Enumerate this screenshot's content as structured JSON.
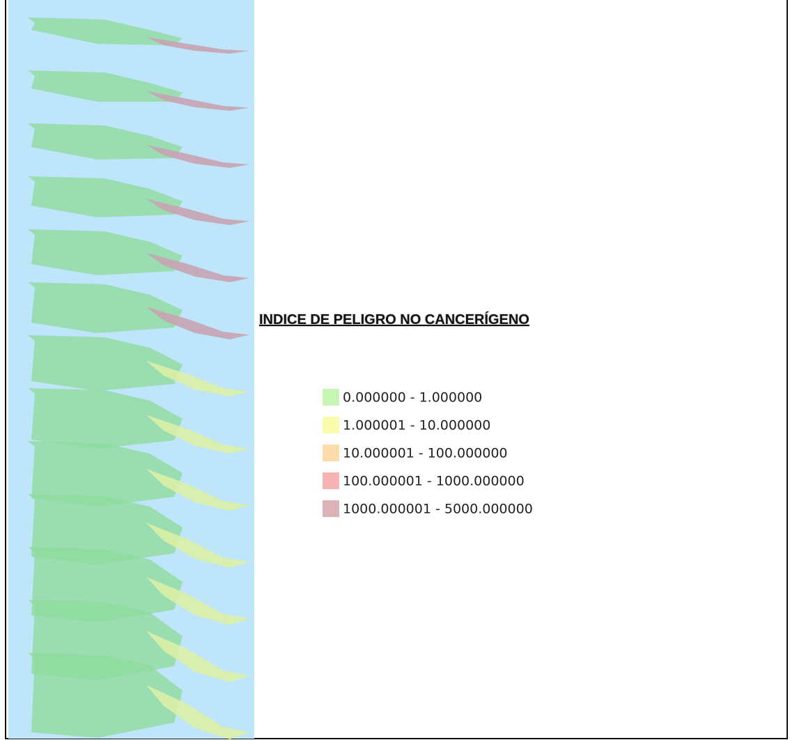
{
  "legend": {
    "title": "INDICE DE PELIGRO NO CANCERÍGENO",
    "items": [
      {
        "label": "0.000000 - 1.000000",
        "color": "#c8f5b4"
      },
      {
        "label": "1.000001 - 10.000000",
        "color": "#fbfbad"
      },
      {
        "label": "10.000001 - 100.000000",
        "color": "#fddcab"
      },
      {
        "label": "100.000001 - 1000.000000",
        "color": "#f6b3b3"
      },
      {
        "label": "1000.000001 - 5000.000000",
        "color": "#dbb2b7"
      }
    ]
  }
}
